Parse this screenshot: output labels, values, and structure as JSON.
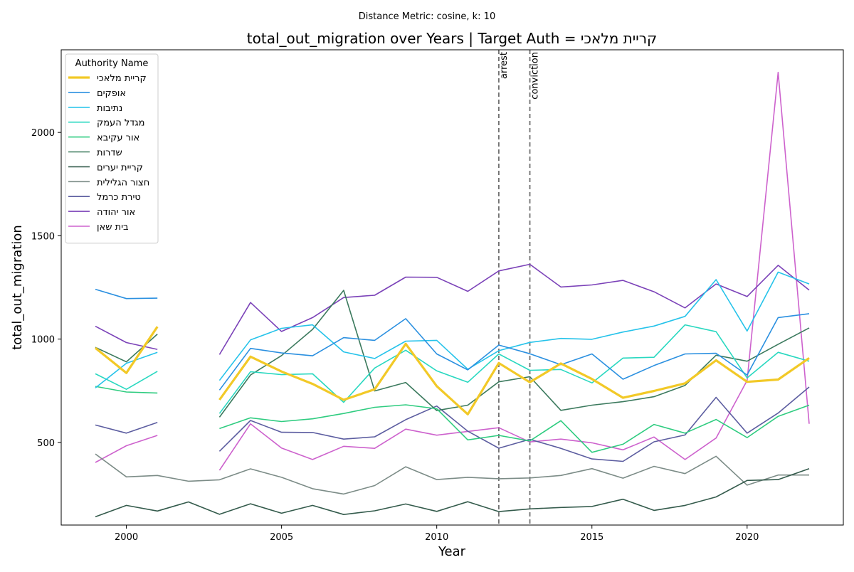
{
  "chart_data": {
    "type": "line",
    "suptitle": "Distance Metric: cosine, k: 10",
    "title": "total_out_migration over Years | Target Auth = קריית מלאכי",
    "xlabel": "Year",
    "ylabel": "total_out_migration",
    "xlim": [
      1997.9,
      2023.1
    ],
    "ylim": [
      100,
      2400
    ],
    "xticks": [
      2000,
      2005,
      2010,
      2015,
      2020
    ],
    "yticks": [
      500,
      1000,
      1500,
      2000
    ],
    "grid": false,
    "legend": {
      "title": "Authority Name",
      "placement": "top-left"
    },
    "vlines": [
      {
        "x": 2012,
        "label": "arrest"
      },
      {
        "x": 2013,
        "label": "conviction"
      }
    ],
    "x": [
      1999,
      2000,
      2001,
      2002,
      2003,
      2004,
      2005,
      2006,
      2007,
      2008,
      2009,
      2010,
      2011,
      2012,
      2013,
      2014,
      2015,
      2016,
      2017,
      2018,
      2019,
      2020,
      2021,
      2022
    ],
    "series": [
      {
        "name": "קריית מלאכי",
        "color": "#f2c927",
        "width": 3.2,
        "values": [
          957,
          836,
          1060,
          null,
          706,
          915,
          843,
          783,
          706,
          757,
          977,
          772,
          636,
          884,
          791,
          882,
          807,
          716,
          749,
          786,
          897,
          793,
          804,
          908
        ]
      },
      {
        "name": "אופקים",
        "color": "#2b90e0",
        "width": 1.6,
        "values": [
          1241,
          1196,
          1198,
          null,
          753,
          955,
          933,
          919,
          1007,
          994,
          1099,
          928,
          851,
          971,
          929,
          876,
          928,
          806,
          872,
          928,
          931,
          826,
          1104,
          1123
        ]
      },
      {
        "name": "נתיבות",
        "color": "#26c3ea",
        "width": 1.6,
        "values": [
          764,
          883,
          936,
          null,
          800,
          996,
          1052,
          1069,
          938,
          906,
          990,
          994,
          854,
          944,
          984,
          1003,
          999,
          1034,
          1063,
          1110,
          1288,
          1039,
          1324,
          1267
        ]
      },
      {
        "name": "מגדל העמק",
        "color": "#29d8c0",
        "width": 1.6,
        "values": [
          832,
          757,
          844,
          null,
          640,
          842,
          828,
          832,
          694,
          860,
          946,
          846,
          791,
          928,
          849,
          853,
          788,
          908,
          912,
          1069,
          1036,
          812,
          936,
          893
        ]
      },
      {
        "name": "אור עקיבא",
        "color": "#2fcc80",
        "width": 1.6,
        "values": [
          771,
          744,
          739,
          null,
          567,
          619,
          601,
          614,
          640,
          670,
          682,
          663,
          512,
          534,
          507,
          605,
          452,
          491,
          587,
          545,
          611,
          523,
          626,
          680
        ]
      },
      {
        "name": "שדרות",
        "color": "#3c7a5e",
        "width": 1.6,
        "values": [
          960,
          890,
          1024,
          null,
          622,
          826,
          920,
          1047,
          1236,
          749,
          790,
          654,
          680,
          793,
          818,
          655,
          680,
          697,
          721,
          776,
          922,
          893,
          975,
          1054
        ]
      },
      {
        "name": "קריית יערים",
        "color": "#345b4c",
        "width": 1.6,
        "values": [
          140,
          195,
          168,
          212,
          152,
          203,
          157,
          195,
          151,
          169,
          202,
          166,
          213,
          165,
          178,
          185,
          190,
          225,
          171,
          195,
          236,
          316,
          320,
          373
        ]
      },
      {
        "name": "חצור הגלילית",
        "color": "#7c8c87",
        "width": 1.6,
        "values": [
          444,
          333,
          340,
          312,
          319,
          372,
          331,
          276,
          250,
          291,
          382,
          320,
          331,
          324,
          328,
          340,
          373,
          327,
          384,
          349,
          433,
          293,
          342,
          342
        ]
      },
      {
        "name": "טירת כרמל",
        "color": "#5c5da0",
        "width": 1.6,
        "values": [
          584,
          545,
          597,
          null,
          457,
          606,
          549,
          548,
          516,
          527,
          610,
          676,
          554,
          472,
          515,
          471,
          420,
          408,
          503,
          536,
          718,
          545,
          642,
          768
        ]
      },
      {
        "name": "אור יהודה",
        "color": "#7b42b8",
        "width": 1.6,
        "values": [
          1062,
          983,
          950,
          null,
          925,
          1177,
          1037,
          1104,
          1201,
          1212,
          1300,
          1299,
          1231,
          1330,
          1362,
          1252,
          1262,
          1284,
          1229,
          1151,
          1267,
          1206,
          1357,
          1237
        ]
      },
      {
        "name": "בית שאן",
        "color": "#cd62cd",
        "width": 1.6,
        "values": [
          403,
          484,
          534,
          null,
          365,
          590,
          473,
          417,
          481,
          471,
          564,
          535,
          553,
          571,
          502,
          516,
          498,
          464,
          526,
          417,
          521,
          800,
          2291,
          590
        ]
      }
    ]
  }
}
